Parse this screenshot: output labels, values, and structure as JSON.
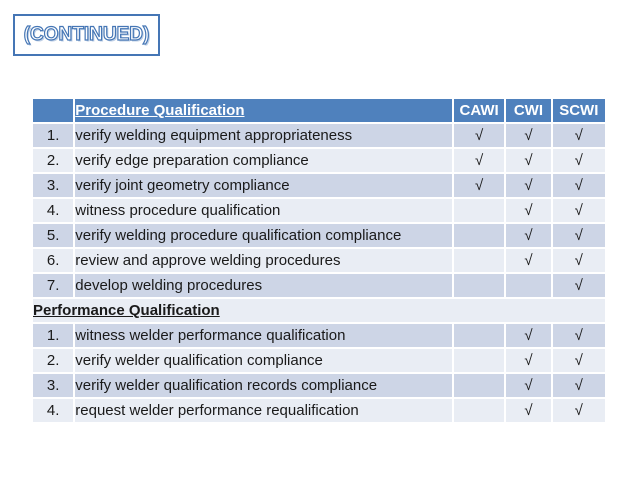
{
  "slide": {
    "continued_label": "(CONTINUED)"
  },
  "table": {
    "header": {
      "number_label": "",
      "task_label": "Procedure Qualification",
      "cols": [
        "CAWI",
        "CWI",
        "SCWI"
      ]
    },
    "rows": [
      {
        "type": "item",
        "num": "1.",
        "task": "verify welding equipment appropriateness",
        "checks": [
          "√",
          "√",
          "√"
        ]
      },
      {
        "type": "item",
        "num": "2.",
        "task": "verify edge preparation compliance",
        "checks": [
          "√",
          "√",
          "√"
        ]
      },
      {
        "type": "item",
        "num": "3.",
        "task": "verify joint geometry compliance",
        "checks": [
          "√",
          "√",
          "√"
        ]
      },
      {
        "type": "item",
        "num": "4.",
        "task": "witness procedure qualification",
        "checks": [
          "",
          "√",
          "√"
        ]
      },
      {
        "type": "item",
        "num": "5.",
        "task": "verify welding procedure qualification compliance",
        "checks": [
          "",
          "√",
          "√"
        ]
      },
      {
        "type": "item",
        "num": "6.",
        "task": "review and approve welding procedures",
        "checks": [
          "",
          "√",
          "√"
        ]
      },
      {
        "type": "item",
        "num": "7.",
        "task": "develop welding procedures",
        "checks": [
          "",
          "",
          "√"
        ]
      },
      {
        "type": "section",
        "label": "Performance Qualification"
      },
      {
        "type": "item",
        "num": "1.",
        "task": "witness welder performance qualification",
        "checks": [
          "",
          "√",
          "√"
        ]
      },
      {
        "type": "item",
        "num": "2.",
        "task": "verify welder qualification compliance",
        "checks": [
          "",
          "√",
          "√"
        ]
      },
      {
        "type": "item",
        "num": "3.",
        "task": "verify welder qualification records compliance",
        "checks": [
          "",
          "√",
          "√"
        ]
      },
      {
        "type": "item",
        "num": "4.",
        "task": "request welder performance requalification",
        "checks": [
          "",
          "√",
          "√"
        ]
      }
    ]
  },
  "colors": {
    "header_bg": "#4F81BD",
    "header_text": "#FFFFFF",
    "row_dark": "#CDD5E6",
    "row_light": "#E9EDF4",
    "accent_border": "#4576B5",
    "body_text": "#1A1A1A"
  }
}
